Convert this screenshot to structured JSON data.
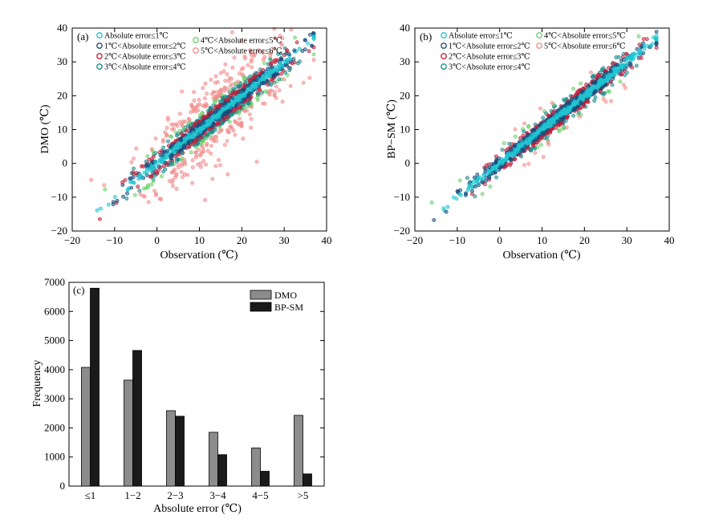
{
  "chart_data": [
    {
      "id": "a",
      "type": "scatter",
      "panel_label": "(a)",
      "xlabel": "Observation (℃)",
      "ylabel": "DMO (℃)",
      "xlim": [
        -20,
        40
      ],
      "ylim": [
        -20,
        40
      ],
      "xticks": [
        "−20",
        "−10",
        "0",
        "10",
        "20",
        "30",
        "40"
      ],
      "yticks": [
        "−20",
        "−10",
        "0",
        "10",
        "20",
        "30",
        "40"
      ],
      "legend": [
        {
          "label": "Absolute error≤1℃",
          "color": "#1fc4d1"
        },
        {
          "label": "1℃<Absolute error≤2℃",
          "color": "#1a4a7a"
        },
        {
          "label": "2℃<Absolute error≤3℃",
          "color": "#c0203a"
        },
        {
          "label": "3℃<Absolute error≤4℃",
          "color": "#1a8a8a"
        },
        {
          "label": "4℃<Absolute error≤5℃",
          "color": "#6ad06a"
        },
        {
          "label": "5℃<Absolute error≤6℃",
          "color": "#f28a8a"
        }
      ],
      "spread": 1.0
    },
    {
      "id": "b",
      "type": "scatter",
      "panel_label": "(b)",
      "xlabel": "Observation (℃)",
      "ylabel": "BP−SM (℃)",
      "xlim": [
        -20,
        40
      ],
      "ylim": [
        -20,
        40
      ],
      "xticks": [
        "−20",
        "−10",
        "0",
        "10",
        "20",
        "30",
        "40"
      ],
      "yticks": [
        "−20",
        "−10",
        "0",
        "10",
        "20",
        "30",
        "40"
      ],
      "legend": [
        {
          "label": "Absolute error≤1℃",
          "color": "#1fc4d1"
        },
        {
          "label": "1℃<Absolute error≤2℃",
          "color": "#1a4a7a"
        },
        {
          "label": "2℃<Absolute error≤3℃",
          "color": "#c0203a"
        },
        {
          "label": "3℃<Absolute error≤4℃",
          "color": "#1a8a8a"
        },
        {
          "label": "4℃<Absolute error≤5℃",
          "color": "#6ad06a"
        },
        {
          "label": "5℃<Absolute error≤6℃",
          "color": "#f28a8a"
        }
      ],
      "spread": 0.5
    },
    {
      "id": "c",
      "type": "bar",
      "panel_label": "(c)",
      "xlabel": "Absolute error (℃)",
      "ylabel": "Frequency",
      "ylim": [
        0,
        7000
      ],
      "yticks": [
        "0",
        "1000",
        "2000",
        "3000",
        "4000",
        "5000",
        "6000",
        "7000"
      ],
      "categories": [
        "≤1",
        "1−2",
        "2−3",
        "3−4",
        "4−5",
        ">5"
      ],
      "series": [
        {
          "name": "DMO",
          "color": "#8c8c8c",
          "values": [
            4080,
            3640,
            2590,
            1850,
            1310,
            2430
          ]
        },
        {
          "name": "BP-SM",
          "color": "#1a1a1a",
          "values": [
            6800,
            4660,
            2400,
            1080,
            510,
            420
          ]
        }
      ]
    }
  ]
}
